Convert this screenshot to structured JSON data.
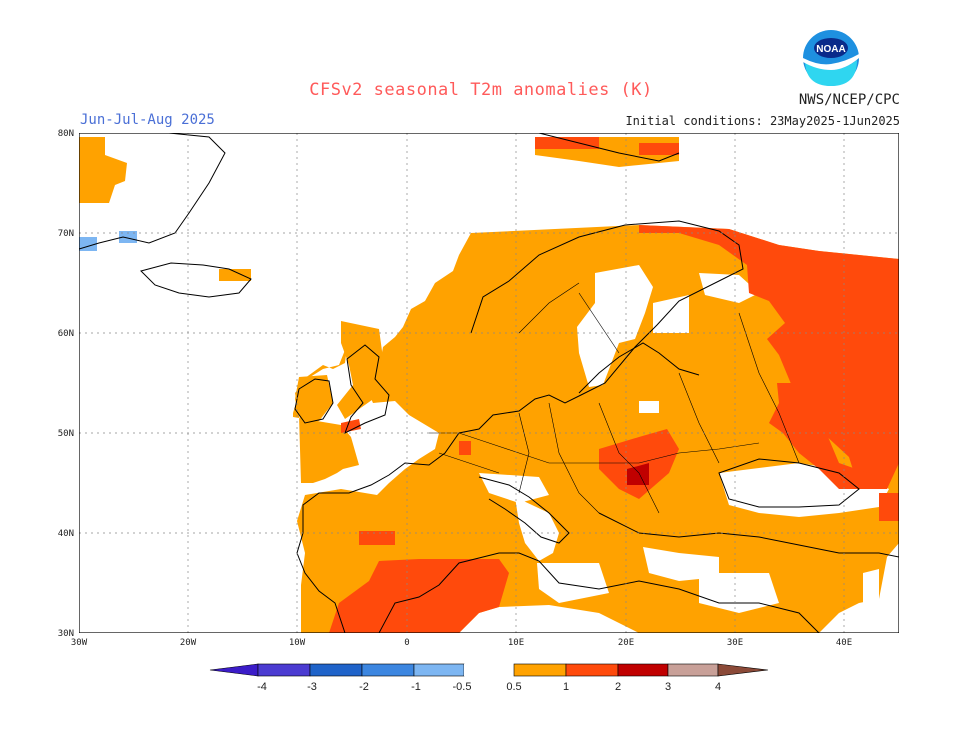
{
  "title": "CFSv2 seasonal T2m anomalies (K)",
  "season": "Jun-Jul-Aug 2025",
  "agency": "NWS/NCEP/CPC",
  "initial_conditions": "Initial conditions: 23May2025-1Jun2025",
  "logo_text": "NOAA",
  "lat_labels": [
    "80N",
    "70N",
    "60N",
    "50N",
    "40N",
    "30N"
  ],
  "lon_labels": [
    "30W",
    "20W",
    "10W",
    "0",
    "10E",
    "20E",
    "30E",
    "40E"
  ],
  "colorbar": {
    "labels": [
      "-4",
      "-3",
      "-2",
      "-1",
      "-0.5",
      "0.5",
      "1",
      "2",
      "3",
      "4"
    ],
    "colors": {
      "lt_minus4": "#3b1cc8",
      "m4_m3": "#4b3bd1",
      "m3_m2": "#1f63c9",
      "m2_m1": "#3c86e0",
      "m1_m05": "#7db6f2",
      "m05_05": "#ffffff",
      "p05_1": "#ffa200",
      "p1_2": "#ff4a0c",
      "p2_3": "#c00000",
      "p3_4": "#c8a098",
      "gt_4": "#8b4a38"
    }
  },
  "map_colors": {
    "ocean": "#ffffff",
    "anom_05_1": "#ffa200",
    "anom_1_2": "#ff4a0c",
    "anom_2_3": "#c00000",
    "anom_m1_m05": "#7db6f2",
    "coast": "#000000",
    "grid": "#888888"
  }
}
